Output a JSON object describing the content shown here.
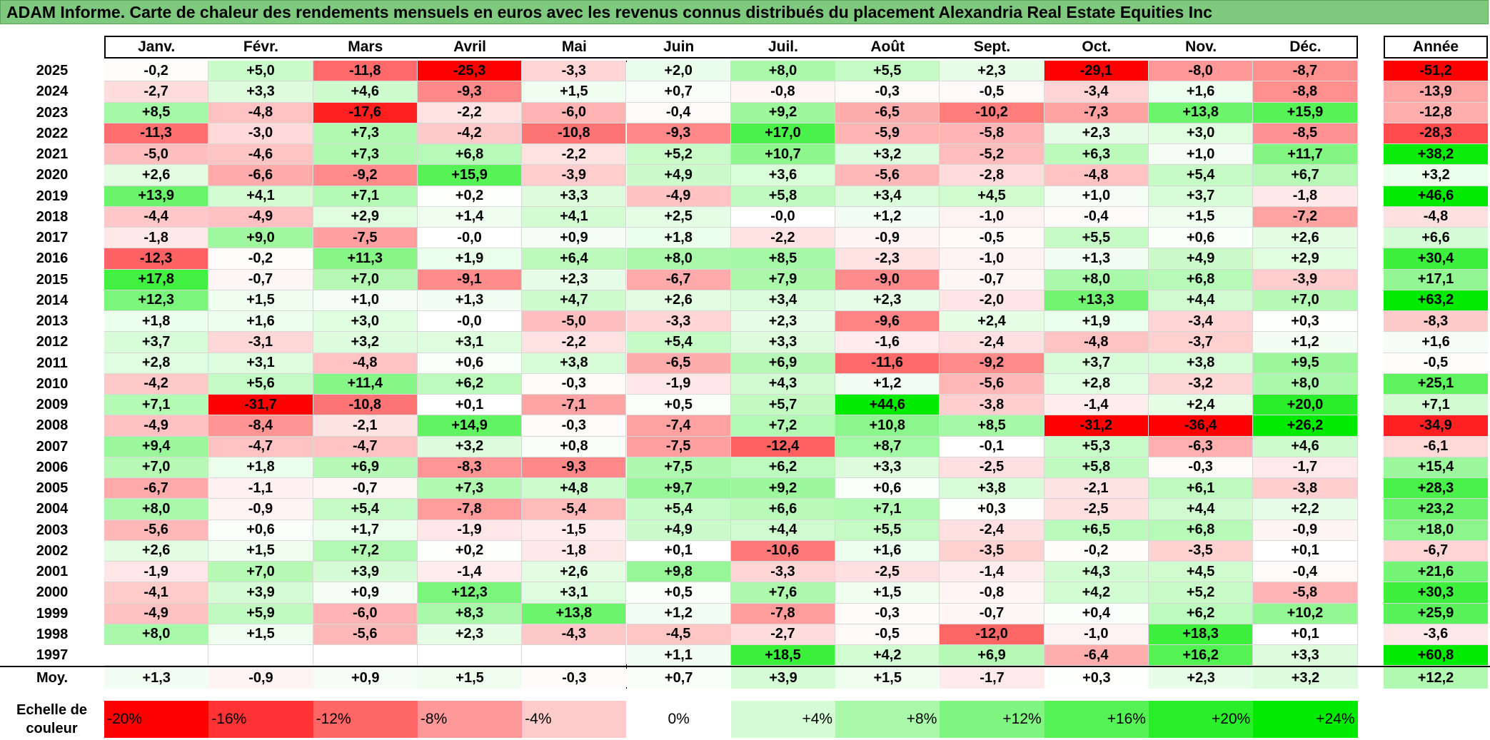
{
  "title": "ADAM Informe. Carte de chaleur des rendements mensuels en euros avec les revenus connus distribués du placement Alexandria Real Estate Equities Inc",
  "colors": {
    "title_bg": "#7ec97e",
    "scale_min": "#ff0000",
    "scale_mid": "#ffffff",
    "scale_max": "#00e000"
  },
  "chart_data": {
    "type": "heatmap",
    "columns": [
      "Janv.",
      "Févr.",
      "Mars",
      "Avril",
      "Mai",
      "Juin",
      "Juil.",
      "Août",
      "Sept.",
      "Oct.",
      "Nov.",
      "Déc."
    ],
    "total_column": "Année",
    "rows": [
      {
        "year": "2025",
        "months": [
          "-0,2",
          "+5,0",
          "-11,8",
          "-25,3",
          "-3,3",
          "+2,0",
          "+8,0",
          "+5,5",
          "+2,3",
          "-29,1",
          "-8,0",
          "-8,7"
        ],
        "year_total": "-51,2"
      },
      {
        "year": "2024",
        "months": [
          "-2,7",
          "+3,3",
          "+4,6",
          "-9,3",
          "+1,5",
          "+0,7",
          "-0,8",
          "-0,3",
          "-0,5",
          "-3,4",
          "+1,6",
          "-8,8"
        ],
        "year_total": "-13,9"
      },
      {
        "year": "2023",
        "months": [
          "+8,5",
          "-4,8",
          "-17,6",
          "-2,2",
          "-6,0",
          "-0,4",
          "+9,2",
          "-6,5",
          "-10,2",
          "-7,3",
          "+13,8",
          "+15,9"
        ],
        "year_total": "-12,8"
      },
      {
        "year": "2022",
        "months": [
          "-11,3",
          "-3,0",
          "+7,3",
          "-4,2",
          "-10,8",
          "-9,3",
          "+17,0",
          "-5,9",
          "-5,8",
          "+2,3",
          "+3,0",
          "-8,5"
        ],
        "year_total": "-28,3"
      },
      {
        "year": "2021",
        "months": [
          "-5,0",
          "-4,6",
          "+7,3",
          "+6,8",
          "-2,2",
          "+5,2",
          "+10,7",
          "+3,2",
          "-5,2",
          "+6,3",
          "+1,0",
          "+11,7"
        ],
        "year_total": "+38,2"
      },
      {
        "year": "2020",
        "months": [
          "+2,6",
          "-6,6",
          "-9,2",
          "+15,9",
          "-3,9",
          "+4,9",
          "+3,6",
          "-5,6",
          "-2,8",
          "-4,8",
          "+5,4",
          "+6,7"
        ],
        "year_total": "+3,2"
      },
      {
        "year": "2019",
        "months": [
          "+13,9",
          "+4,1",
          "+7,1",
          "+0,2",
          "+3,3",
          "-4,9",
          "+5,8",
          "+3,4",
          "+4,5",
          "+1,0",
          "+3,7",
          "-1,8"
        ],
        "year_total": "+46,6"
      },
      {
        "year": "2018",
        "months": [
          "-4,4",
          "-4,9",
          "+2,9",
          "+1,4",
          "+4,1",
          "+2,5",
          "-0,0",
          "+1,2",
          "-1,0",
          "-0,4",
          "+1,5",
          "-7,2"
        ],
        "year_total": "-4,8"
      },
      {
        "year": "2017",
        "months": [
          "-1,8",
          "+9,0",
          "-7,5",
          "-0,0",
          "+0,9",
          "+1,8",
          "-2,2",
          "-0,9",
          "-0,5",
          "+5,5",
          "+0,6",
          "+2,6"
        ],
        "year_total": "+6,6"
      },
      {
        "year": "2016",
        "months": [
          "-12,3",
          "-0,2",
          "+11,3",
          "+1,9",
          "+6,4",
          "+8,0",
          "+8,5",
          "-2,3",
          "-1,0",
          "+1,3",
          "+4,9",
          "+2,9"
        ],
        "year_total": "+30,4"
      },
      {
        "year": "2015",
        "months": [
          "+17,8",
          "-0,7",
          "+7,0",
          "-9,1",
          "+2,3",
          "-6,7",
          "+7,9",
          "-9,0",
          "-0,7",
          "+8,0",
          "+6,8",
          "-3,9"
        ],
        "year_total": "+17,1"
      },
      {
        "year": "2014",
        "months": [
          "+12,3",
          "+1,5",
          "+1,0",
          "+1,3",
          "+4,7",
          "+2,6",
          "+3,4",
          "+2,3",
          "-2,0",
          "+13,3",
          "+4,4",
          "+7,0"
        ],
        "year_total": "+63,2"
      },
      {
        "year": "2013",
        "months": [
          "+1,8",
          "+1,6",
          "+3,0",
          "-0,0",
          "-5,0",
          "-3,3",
          "+2,3",
          "-9,6",
          "+2,4",
          "+1,9",
          "-3,4",
          "+0,3"
        ],
        "year_total": "-8,3"
      },
      {
        "year": "2012",
        "months": [
          "+3,7",
          "-3,1",
          "+3,2",
          "+3,1",
          "-2,2",
          "+5,4",
          "+3,3",
          "-1,6",
          "-2,4",
          "-4,8",
          "-3,7",
          "+1,2"
        ],
        "year_total": "+1,6"
      },
      {
        "year": "2011",
        "months": [
          "+2,8",
          "+3,1",
          "-4,8",
          "+0,6",
          "+3,8",
          "-6,5",
          "+6,9",
          "-11,6",
          "-9,2",
          "+3,7",
          "+3,8",
          "+9,5"
        ],
        "year_total": "-0,5"
      },
      {
        "year": "2010",
        "months": [
          "-4,2",
          "+5,6",
          "+11,4",
          "+6,2",
          "-0,3",
          "-1,9",
          "+4,3",
          "+1,2",
          "-5,6",
          "+2,8",
          "-3,2",
          "+8,0"
        ],
        "year_total": "+25,1"
      },
      {
        "year": "2009",
        "months": [
          "+7,1",
          "-31,7",
          "-10,8",
          "+0,1",
          "-7,1",
          "+0,5",
          "+5,7",
          "+44,6",
          "-3,8",
          "-1,4",
          "+2,4",
          "+20,0"
        ],
        "year_total": "+7,1"
      },
      {
        "year": "2008",
        "months": [
          "-4,9",
          "-8,4",
          "-2,1",
          "+14,9",
          "-0,3",
          "-7,4",
          "+7,2",
          "+10,8",
          "+8,5",
          "-31,2",
          "-36,4",
          "+26,2"
        ],
        "year_total": "-34,9"
      },
      {
        "year": "2007",
        "months": [
          "+9,4",
          "-4,7",
          "-4,7",
          "+3,2",
          "+0,8",
          "-7,5",
          "-12,4",
          "+8,7",
          "-0,1",
          "+5,3",
          "-6,3",
          "+4,6"
        ],
        "year_total": "-6,1"
      },
      {
        "year": "2006",
        "months": [
          "+7,0",
          "+1,8",
          "+6,9",
          "-8,3",
          "-9,3",
          "+7,5",
          "+6,2",
          "+3,3",
          "-2,5",
          "+5,8",
          "-0,3",
          "-1,7"
        ],
        "year_total": "+15,4"
      },
      {
        "year": "2005",
        "months": [
          "-6,7",
          "-1,1",
          "-0,7",
          "+7,3",
          "+4,8",
          "+9,7",
          "+9,2",
          "+0,6",
          "+3,8",
          "-2,1",
          "+6,1",
          "-3,8"
        ],
        "year_total": "+28,3"
      },
      {
        "year": "2004",
        "months": [
          "+8,0",
          "-0,9",
          "+5,4",
          "-7,8",
          "-5,4",
          "+5,4",
          "+6,6",
          "+7,1",
          "+0,3",
          "-2,5",
          "+4,4",
          "+2,2"
        ],
        "year_total": "+23,2"
      },
      {
        "year": "2003",
        "months": [
          "-5,6",
          "+0,6",
          "+1,7",
          "-1,9",
          "-1,5",
          "+4,9",
          "+4,4",
          "+5,5",
          "-2,4",
          "+6,5",
          "+6,8",
          "-0,9"
        ],
        "year_total": "+18,0"
      },
      {
        "year": "2002",
        "months": [
          "+2,6",
          "+1,5",
          "+7,2",
          "+0,2",
          "-1,8",
          "+0,1",
          "-10,6",
          "+1,6",
          "-3,5",
          "-0,2",
          "-3,5",
          "+0,1"
        ],
        "year_total": "-6,7"
      },
      {
        "year": "2001",
        "months": [
          "-1,9",
          "+7,0",
          "+3,9",
          "-1,4",
          "+2,6",
          "+9,8",
          "-3,3",
          "-2,5",
          "-1,4",
          "+4,3",
          "+4,5",
          "-0,4"
        ],
        "year_total": "+21,6"
      },
      {
        "year": "2000",
        "months": [
          "-4,1",
          "+3,9",
          "+0,9",
          "+12,3",
          "+3,1",
          "+0,5",
          "+7,6",
          "+1,5",
          "-0,8",
          "+4,2",
          "+5,2",
          "-5,8"
        ],
        "year_total": "+30,3"
      },
      {
        "year": "1999",
        "months": [
          "-4,9",
          "+5,9",
          "-6,0",
          "+8,3",
          "+13,8",
          "+1,2",
          "-7,8",
          "-0,3",
          "-0,7",
          "+0,4",
          "+6,2",
          "+10,2"
        ],
        "year_total": "+25,9"
      },
      {
        "year": "1998",
        "months": [
          "+8,0",
          "+1,5",
          "-5,6",
          "+2,3",
          "-4,3",
          "-4,5",
          "-2,7",
          "-0,5",
          "-12,0",
          "-1,0",
          "+18,3",
          "+0,1"
        ],
        "year_total": "-3,6"
      },
      {
        "year": "1997",
        "months": [
          "",
          "",
          "",
          "",
          "",
          "+1,1",
          "+18,5",
          "+4,2",
          "+6,9",
          "-6,4",
          "+16,2",
          "+3,3"
        ],
        "year_total": "+60,8"
      }
    ],
    "average_row": {
      "label": "Moy.",
      "months": [
        "+1,3",
        "-0,9",
        "+0,9",
        "+1,5",
        "-0,3",
        "+0,7",
        "+3,9",
        "+1,5",
        "-1,7",
        "+0,3",
        "+2,3",
        "+3,2"
      ],
      "year_total": "+12,2"
    },
    "color_scale": {
      "label": "Echelle de couleur",
      "stops": [
        "-20%",
        "-16%",
        "-12%",
        "-8%",
        "-4%",
        "0%",
        "+4%",
        "+8%",
        "+12%",
        "+16%",
        "+20%",
        "+24%"
      ],
      "stop_values": [
        -20,
        -16,
        -12,
        -8,
        -4,
        0,
        4,
        8,
        12,
        16,
        20,
        24
      ],
      "monthly_range": [
        -20,
        24
      ]
    }
  }
}
